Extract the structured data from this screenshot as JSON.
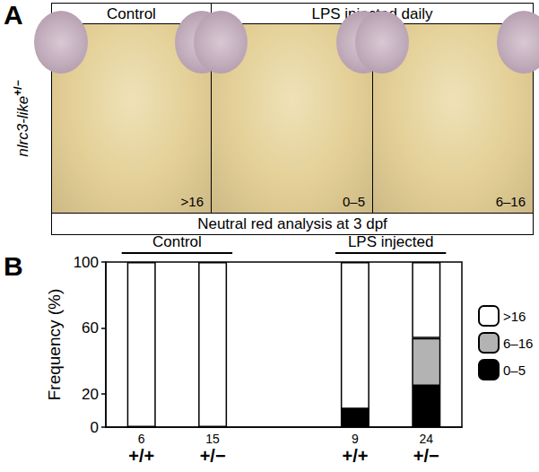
{
  "panel_a": {
    "label": "A",
    "headers": [
      "Control",
      "LPS injected daily"
    ],
    "genotype": "nlrc3-like",
    "genotype_sup": "+/−",
    "images": [
      ">16",
      "0–5",
      "6–16"
    ],
    "footer": "Neutral red analysis at 3 dpf"
  },
  "chart_data": {
    "type": "bar",
    "panel_label": "B",
    "y_label": "Frequency (%)",
    "categories": [
      "+/+",
      "+/−",
      null,
      "+/+",
      "+/−"
    ],
    "n": [
      6,
      15,
      null,
      9,
      24
    ],
    "groups": [
      {
        "label": "Control",
        "start": 0,
        "end": 1
      },
      {
        "label": "LPS injected",
        "start": 3,
        "end": 4
      }
    ],
    "series": [
      {
        "name": ">16",
        "color": "#ffffff",
        "values": [
          100,
          100,
          null,
          89,
          46
        ]
      },
      {
        "name": "6–16",
        "color": "#b3b3b3",
        "values": [
          0,
          0,
          null,
          0,
          29
        ]
      },
      {
        "name": "0–5",
        "color": "#000000",
        "values": [
          0,
          0,
          null,
          11,
          25
        ]
      }
    ],
    "ylim": [
      0,
      100
    ],
    "yticks": [
      0,
      20,
      60,
      100
    ],
    "stacked": true,
    "legend": "right",
    "grid": false
  }
}
